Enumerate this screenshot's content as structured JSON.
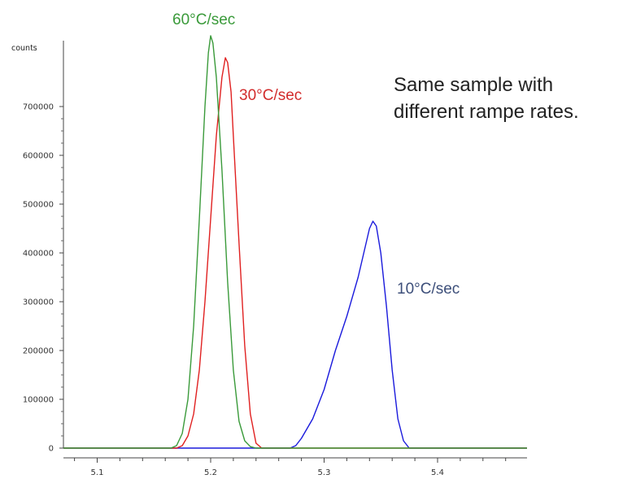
{
  "chart_data": {
    "type": "line",
    "title": "",
    "xlabel": "",
    "ylabel": "counts",
    "x_ticks": [
      "5.1",
      "5.2",
      "5.3",
      "5.4"
    ],
    "y_ticks": [
      "0",
      "100000",
      "200000",
      "300000",
      "400000",
      "500000",
      "600000",
      "700000"
    ],
    "xlim": [
      5.05,
      5.48
    ],
    "ylim": [
      0,
      855000
    ],
    "grid": false,
    "series": [
      {
        "name": "60°C/sec",
        "color": "#3a9a3a",
        "x": [
          5.05,
          5.165,
          5.17,
          5.175,
          5.18,
          5.185,
          5.19,
          5.195,
          5.198,
          5.2,
          5.202,
          5.205,
          5.21,
          5.215,
          5.22,
          5.225,
          5.23,
          5.235,
          5.24,
          5.48
        ],
        "y": [
          0,
          0,
          5000,
          30000,
          100000,
          250000,
          470000,
          700000,
          810000,
          845000,
          830000,
          760000,
          570000,
          340000,
          160000,
          55000,
          15000,
          3000,
          0,
          0
        ]
      },
      {
        "name": "30°C/sec",
        "color": "#e02020",
        "x": [
          5.05,
          5.17,
          5.175,
          5.18,
          5.185,
          5.19,
          5.195,
          5.2,
          5.205,
          5.21,
          5.213,
          5.215,
          5.218,
          5.22,
          5.225,
          5.23,
          5.235,
          5.24,
          5.245,
          5.48
        ],
        "y": [
          0,
          0,
          5000,
          25000,
          70000,
          160000,
          300000,
          470000,
          640000,
          760000,
          800000,
          790000,
          730000,
          640000,
          420000,
          210000,
          70000,
          10000,
          0,
          0
        ]
      },
      {
        "name": "10°C/sec",
        "color": "#1a1adc",
        "x": [
          5.05,
          5.27,
          5.275,
          5.28,
          5.29,
          5.3,
          5.31,
          5.32,
          5.33,
          5.335,
          5.34,
          5.343,
          5.346,
          5.35,
          5.355,
          5.36,
          5.365,
          5.37,
          5.375,
          5.48
        ],
        "y": [
          0,
          0,
          5000,
          20000,
          60000,
          120000,
          200000,
          270000,
          350000,
          400000,
          450000,
          465000,
          455000,
          400000,
          290000,
          160000,
          60000,
          15000,
          0,
          0
        ]
      }
    ],
    "annotations": [
      "Same sample with",
      "different rampe rates."
    ]
  }
}
